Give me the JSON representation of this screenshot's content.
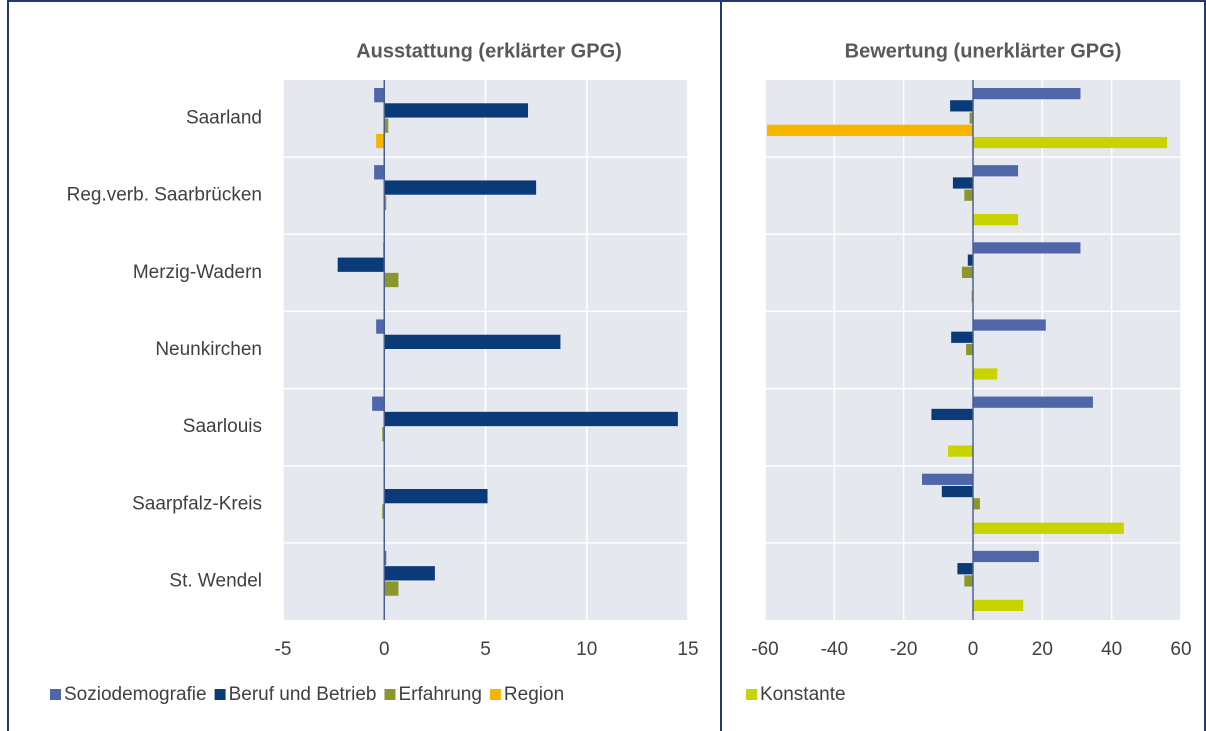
{
  "chart_data": [
    {
      "type": "bar",
      "orientation": "horizontal",
      "title": "Ausstattung (erklärter GPG)",
      "categories": [
        "Saarland",
        "Reg.verb. Saarbrücken",
        "Merzig-Wadern",
        "Neunkirchen",
        "Saarlouis",
        "Saarpfalz-Kreis",
        "St. Wendel"
      ],
      "series": [
        {
          "name": "Soziodemografie",
          "color": "#4f67a8",
          "values": [
            -0.5,
            -0.5,
            -0.05,
            -0.4,
            -0.6,
            0,
            0.1
          ]
        },
        {
          "name": "Beruf und Betrieb",
          "color": "#0b3a78",
          "values": [
            7.1,
            7.5,
            -2.3,
            8.7,
            14.5,
            5.1,
            2.5
          ]
        },
        {
          "name": "Erfahrung",
          "color": "#8c962c",
          "values": [
            0.2,
            0.1,
            0.7,
            0,
            -0.1,
            -0.1,
            0.7
          ]
        },
        {
          "name": "Region",
          "color": "#f7b500",
          "values": [
            -0.4,
            0,
            0,
            0,
            0,
            0,
            0
          ]
        }
      ],
      "xlim": [
        -5,
        15
      ],
      "xticks": [
        -5,
        0,
        5,
        10,
        15
      ],
      "grid": true
    },
    {
      "type": "bar",
      "orientation": "horizontal",
      "title": "Bewertung (unerklärter GPG)",
      "series": [
        {
          "name": "Soziodemografie",
          "color": "#4f67a8",
          "values": [
            31,
            13,
            31,
            21,
            34.6,
            -14.7,
            19
          ]
        },
        {
          "name": "Beruf und Betrieb",
          "color": "#0b3a78",
          "values": [
            -6.6,
            -5.8,
            -1.5,
            -6.3,
            -12,
            -9,
            -4.5
          ]
        },
        {
          "name": "Erfahrung",
          "color": "#8c962c",
          "values": [
            -1,
            -2.5,
            -3.2,
            -2,
            0,
            2,
            -2.5
          ]
        },
        {
          "name": "Region",
          "color": "#f7b500",
          "values": [
            -59.4,
            0,
            0,
            0,
            0,
            0,
            0
          ]
        },
        {
          "name": "Konstante",
          "color": "#c8d400",
          "values": [
            56,
            13,
            -0.5,
            7,
            -7.2,
            43.5,
            14.5
          ]
        }
      ],
      "xlim": [
        -60,
        60
      ],
      "xticks": [
        -60,
        -40,
        -20,
        0,
        20,
        40,
        60
      ],
      "grid": true
    }
  ]
}
